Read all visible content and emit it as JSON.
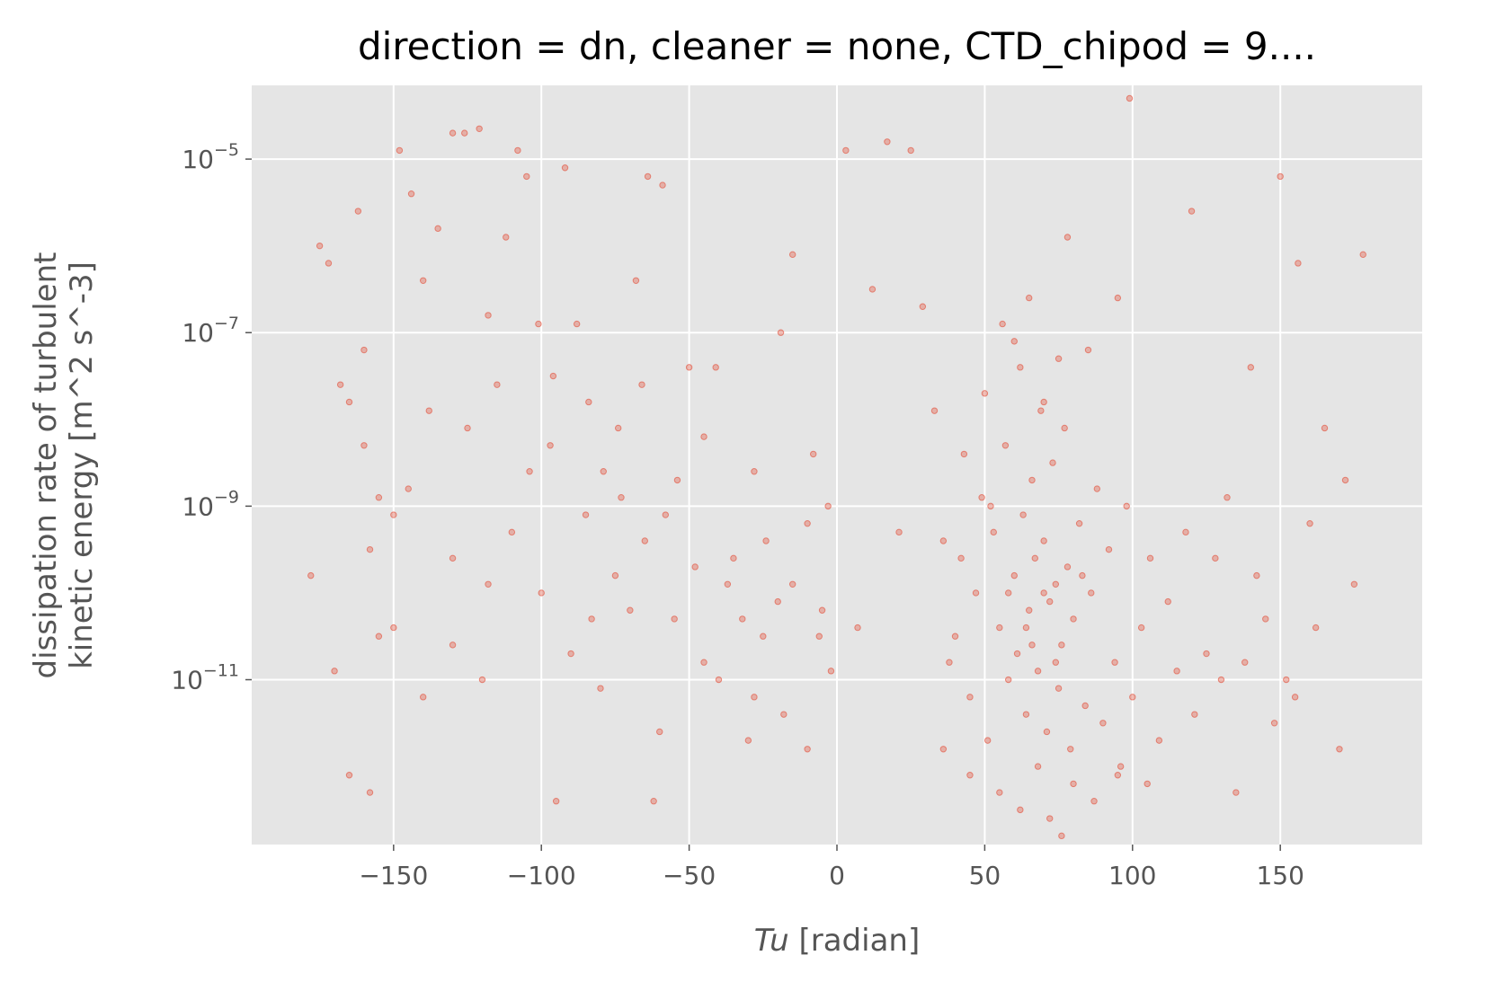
{
  "chart_data": {
    "type": "scatter",
    "title": "direction = dn, cleaner = none, CTD_chipod = 9....",
    "xlabel": {
      "italic": "Tu",
      "rest": " [radian]"
    },
    "ylabel": [
      "dissipation rate of turbulent",
      "kinetic energy [m^2 s^-3]"
    ],
    "xlim": [
      -198,
      198
    ],
    "ylim_log10": [
      -12.9,
      -4.15
    ],
    "y_scale": "log",
    "x_ticks": [
      {
        "value": -150,
        "label": "−150"
      },
      {
        "value": -100,
        "label": "−100"
      },
      {
        "value": -50,
        "label": "−50"
      },
      {
        "value": 0,
        "label": "0"
      },
      {
        "value": 50,
        "label": "50"
      },
      {
        "value": 100,
        "label": "100"
      },
      {
        "value": 150,
        "label": "150"
      }
    ],
    "y_ticks": [
      {
        "exp": -5,
        "base": "10",
        "sup": "−5"
      },
      {
        "exp": -7,
        "base": "10",
        "sup": "−7"
      },
      {
        "exp": -9,
        "base": "10",
        "sup": "−9"
      },
      {
        "exp": -11,
        "base": "10",
        "sup": "−11"
      }
    ],
    "grid": true,
    "legend": "none",
    "marker_color": "#E24A33",
    "background_color": "#E5E5E5",
    "grid_color": "#FFFFFF",
    "series": [
      {
        "points": [
          [
            -175,
            -6.0
          ],
          [
            -172,
            -6.2
          ],
          [
            -168,
            -7.6
          ],
          [
            -165,
            -7.8
          ],
          [
            -162,
            -5.6
          ],
          [
            -160,
            -8.3
          ],
          [
            -158,
            -9.5
          ],
          [
            -155,
            -10.5
          ],
          [
            -150,
            -9.1
          ],
          [
            -148,
            -4.9
          ],
          [
            -144,
            -5.4
          ],
          [
            -140,
            -6.4
          ],
          [
            -135,
            -5.8
          ],
          [
            -130,
            -4.7
          ],
          [
            -126,
            -4.7
          ],
          [
            -121,
            -4.65
          ],
          [
            -118,
            -6.8
          ],
          [
            -112,
            -5.9
          ],
          [
            -108,
            -4.9
          ],
          [
            -105,
            -5.2
          ],
          [
            -101,
            -6.9
          ],
          [
            -96,
            -7.5
          ],
          [
            -92,
            -5.1
          ],
          [
            -88,
            -6.9
          ],
          [
            -84,
            -7.8
          ],
          [
            -79,
            -8.6
          ],
          [
            -74,
            -8.1
          ],
          [
            -68,
            -6.4
          ],
          [
            -64,
            -5.2
          ],
          [
            -59,
            -5.3
          ],
          [
            -54,
            -8.7
          ],
          [
            -50,
            -7.4
          ],
          [
            -45,
            -8.2
          ],
          [
            -41,
            -7.4
          ],
          [
            -37,
            -9.9
          ],
          [
            -32,
            -10.3
          ],
          [
            -28,
            -8.6
          ],
          [
            -24,
            -9.4
          ],
          [
            -19,
            -7.0
          ],
          [
            -15,
            -6.1
          ],
          [
            -10,
            -9.2
          ],
          [
            -6,
            -10.5
          ],
          [
            -2,
            -10.9
          ],
          [
            3,
            -4.9
          ],
          [
            7,
            -10.4
          ],
          [
            12,
            -6.5
          ],
          [
            17,
            -4.8
          ],
          [
            21,
            -9.3
          ],
          [
            25,
            -4.9
          ],
          [
            29,
            -6.7
          ],
          [
            33,
            -7.9
          ],
          [
            36,
            -11.8
          ],
          [
            -150,
            -10.4
          ],
          [
            -140,
            -11.2
          ],
          [
            -130,
            -10.6
          ],
          [
            -120,
            -11.0
          ],
          [
            -110,
            -9.3
          ],
          [
            -100,
            -10.0
          ],
          [
            -90,
            -10.7
          ],
          [
            -80,
            -11.1
          ],
          [
            -70,
            -10.2
          ],
          [
            -60,
            -11.6
          ],
          [
            -40,
            -11.0
          ],
          [
            -30,
            -11.7
          ],
          [
            -20,
            -10.1
          ],
          [
            -10,
            -11.8
          ],
          [
            -170,
            -10.9
          ],
          [
            -178,
            -9.8
          ],
          [
            -165,
            -12.1
          ],
          [
            -158,
            -12.3
          ],
          [
            -95,
            -12.4
          ],
          [
            -62,
            -12.4
          ],
          [
            -130,
            -9.6
          ],
          [
            -145,
            -8.8
          ],
          [
            -125,
            -8.1
          ],
          [
            -115,
            -7.6
          ],
          [
            -97,
            -8.3
          ],
          [
            -85,
            -9.1
          ],
          [
            -75,
            -9.8
          ],
          [
            -65,
            -9.4
          ],
          [
            -55,
            -10.3
          ],
          [
            -45,
            -10.8
          ],
          [
            -35,
            -9.6
          ],
          [
            -25,
            -10.5
          ],
          [
            -15,
            -9.9
          ],
          [
            -5,
            -10.2
          ],
          [
            -160,
            -7.2
          ],
          [
            -155,
            -8.9
          ],
          [
            -138,
            -7.9
          ],
          [
            -118,
            -9.9
          ],
          [
            -104,
            -8.6
          ],
          [
            -83,
            -10.3
          ],
          [
            -73,
            -8.9
          ],
          [
            -58,
            -9.1
          ],
          [
            -48,
            -9.7
          ],
          [
            -28,
            -11.2
          ],
          [
            -18,
            -11.4
          ],
          [
            -8,
            -8.4
          ],
          [
            -3,
            -9.0
          ],
          [
            -66,
            -7.6
          ]
        ]
      },
      {
        "points": [
          [
            40,
            -10.5
          ],
          [
            42,
            -9.6
          ],
          [
            45,
            -11.2
          ],
          [
            47,
            -10.0
          ],
          [
            49,
            -8.9
          ],
          [
            51,
            -11.7
          ],
          [
            53,
            -9.3
          ],
          [
            55,
            -10.4
          ],
          [
            57,
            -8.3
          ],
          [
            58,
            -11.0
          ],
          [
            60,
            -9.8
          ],
          [
            61,
            -10.7
          ],
          [
            62,
            -7.4
          ],
          [
            63,
            -9.1
          ],
          [
            64,
            -11.4
          ],
          [
            65,
            -10.2
          ],
          [
            66,
            -8.7
          ],
          [
            67,
            -9.6
          ],
          [
            68,
            -10.9
          ],
          [
            69,
            -7.9
          ],
          [
            70,
            -9.4
          ],
          [
            71,
            -11.6
          ],
          [
            72,
            -10.1
          ],
          [
            73,
            -8.5
          ],
          [
            74,
            -9.9
          ],
          [
            75,
            -11.1
          ],
          [
            76,
            -10.6
          ],
          [
            77,
            -8.1
          ],
          [
            78,
            -9.7
          ],
          [
            79,
            -11.8
          ],
          [
            80,
            -10.3
          ],
          [
            82,
            -9.2
          ],
          [
            84,
            -11.3
          ],
          [
            86,
            -10.0
          ],
          [
            88,
            -8.8
          ],
          [
            90,
            -11.5
          ],
          [
            92,
            -9.5
          ],
          [
            94,
            -10.8
          ],
          [
            96,
            -12.0
          ],
          [
            98,
            -9.0
          ],
          [
            100,
            -11.2
          ],
          [
            103,
            -10.4
          ],
          [
            106,
            -9.6
          ],
          [
            109,
            -11.7
          ],
          [
            112,
            -10.1
          ],
          [
            115,
            -10.9
          ],
          [
            118,
            -9.3
          ],
          [
            121,
            -11.4
          ],
          [
            125,
            -10.7
          ],
          [
            130,
            -11.0
          ],
          [
            50,
            -7.7
          ],
          [
            56,
            -6.9
          ],
          [
            60,
            -7.1
          ],
          [
            65,
            -6.6
          ],
          [
            70,
            -7.8
          ],
          [
            75,
            -7.3
          ],
          [
            78,
            -5.9
          ],
          [
            85,
            -7.2
          ],
          [
            95,
            -6.6
          ],
          [
            99,
            -4.3
          ],
          [
            45,
            -12.1
          ],
          [
            55,
            -12.3
          ],
          [
            62,
            -12.5
          ],
          [
            68,
            -12.0
          ],
          [
            72,
            -12.6
          ],
          [
            76,
            -12.8
          ],
          [
            80,
            -12.2
          ],
          [
            87,
            -12.4
          ],
          [
            95,
            -12.1
          ],
          [
            105,
            -12.2
          ],
          [
            120,
            -5.6
          ],
          [
            140,
            -7.4
          ],
          [
            150,
            -5.2
          ],
          [
            156,
            -6.2
          ],
          [
            165,
            -8.1
          ],
          [
            172,
            -8.7
          ],
          [
            178,
            -6.1
          ],
          [
            145,
            -10.3
          ],
          [
            155,
            -11.2
          ],
          [
            160,
            -9.2
          ],
          [
            135,
            -12.3
          ],
          [
            128,
            -9.6
          ],
          [
            138,
            -10.8
          ],
          [
            148,
            -11.5
          ],
          [
            152,
            -11.0
          ],
          [
            162,
            -10.4
          ],
          [
            170,
            -11.8
          ],
          [
            175,
            -9.9
          ],
          [
            132,
            -8.9
          ],
          [
            142,
            -9.8
          ],
          [
            36,
            -9.4
          ],
          [
            38,
            -10.8
          ],
          [
            43,
            -8.4
          ],
          [
            52,
            -9.0
          ],
          [
            58,
            -10.0
          ],
          [
            64,
            -10.4
          ],
          [
            66,
            -10.6
          ],
          [
            70,
            -10.0
          ],
          [
            74,
            -10.8
          ],
          [
            83,
            -9.8
          ]
        ]
      }
    ]
  }
}
